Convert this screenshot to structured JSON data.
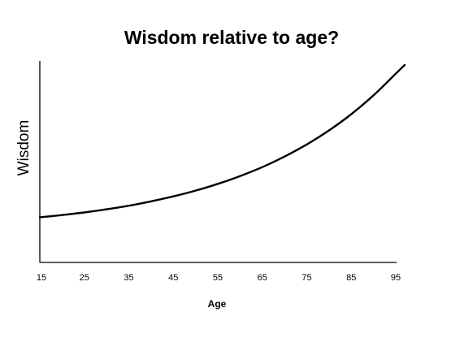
{
  "chart_data": {
    "type": "line",
    "title": "Wisdom relative to age?",
    "xlabel": "Age",
    "ylabel": "Wisdom",
    "x_ticks": [
      "15",
      "25",
      "35",
      "45",
      "55",
      "65",
      "75",
      "85",
      "95"
    ],
    "xlim": [
      15,
      97
    ],
    "ylim": [
      0,
      100
    ],
    "y_ticks_shown": false,
    "grid": false,
    "legend": "none",
    "line_color": "#000000",
    "series": [
      {
        "x": [
          15,
          20,
          25,
          30,
          35,
          40,
          45,
          50,
          55,
          60,
          65,
          70,
          75,
          80,
          85,
          90,
          95,
          97
        ],
        "values": [
          12,
          13.3,
          14.8,
          16.6,
          18.7,
          21.2,
          24.1,
          27.4,
          31.3,
          35.8,
          41,
          47.1,
          54.1,
          62.2,
          71.6,
          82.5,
          95,
          100
        ]
      }
    ]
  }
}
